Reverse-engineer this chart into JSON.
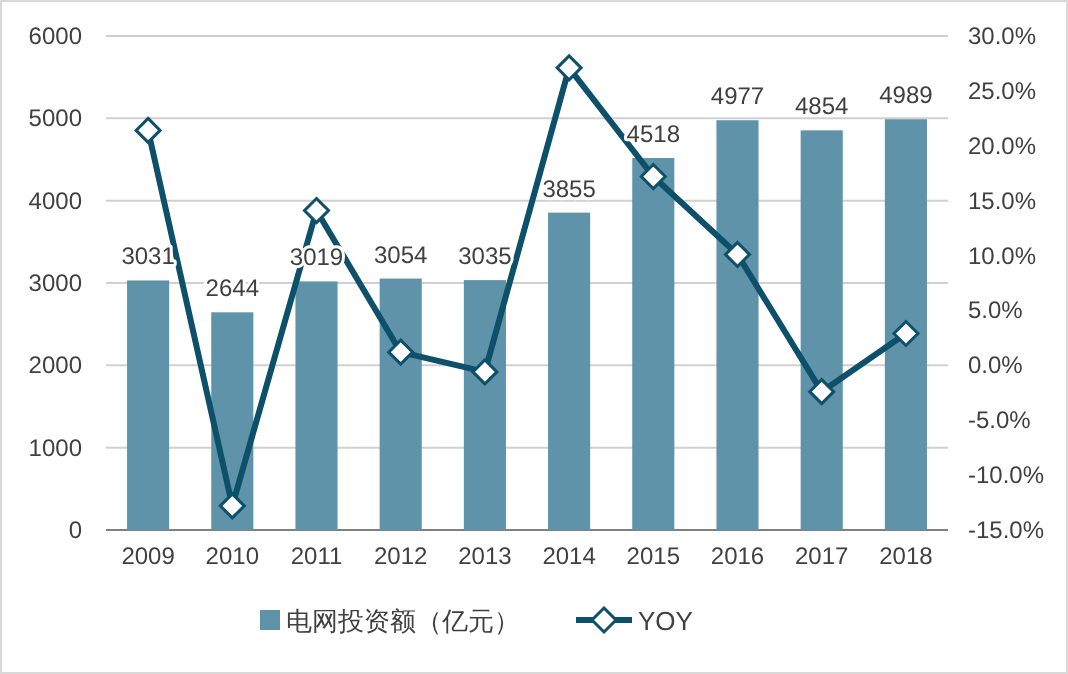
{
  "chart_data": {
    "type": "bar",
    "categories": [
      "2009",
      "2010",
      "2011",
      "2012",
      "2013",
      "2014",
      "2015",
      "2016",
      "2017",
      "2018"
    ],
    "series": [
      {
        "name": "电网投资额（亿元）",
        "color": "#5e93a9",
        "values": [
          3031,
          2644,
          3019,
          3054,
          3035,
          3855,
          4518,
          4977,
          4854,
          4989
        ],
        "value_labels": [
          "3031",
          "2644",
          "3019",
          "3054",
          "3035",
          "3855",
          "4518",
          "4977",
          "4854",
          "4989"
        ]
      },
      {
        "name": "YOY",
        "type": "line",
        "axis": "y2",
        "color": "#0e5069",
        "marker": "diamond",
        "values": [
          21.4,
          -12.8,
          14.1,
          1.2,
          -0.6,
          27.1,
          17.2,
          10.1,
          -2.4,
          2.9
        ]
      }
    ],
    "ylim": [
      0,
      6000
    ],
    "yticks": [
      0,
      1000,
      2000,
      3000,
      4000,
      5000,
      6000
    ],
    "y2lim": [
      -15,
      30
    ],
    "y2ticks": [
      {
        "value": -15,
        "label": "-15.0%"
      },
      {
        "value": -10,
        "label": "-10.0%"
      },
      {
        "value": -5,
        "label": "-5.0%"
      },
      {
        "value": 0,
        "label": "0.0%"
      },
      {
        "value": 5,
        "label": "5.0%"
      },
      {
        "value": 10,
        "label": "10.0%"
      },
      {
        "value": 15,
        "label": "15.0%"
      },
      {
        "value": 20,
        "label": "20.0%"
      },
      {
        "value": 25,
        "label": "25.0%"
      },
      {
        "value": 30,
        "label": "30.0%"
      }
    ],
    "grid": "y",
    "legend": "bottom"
  }
}
